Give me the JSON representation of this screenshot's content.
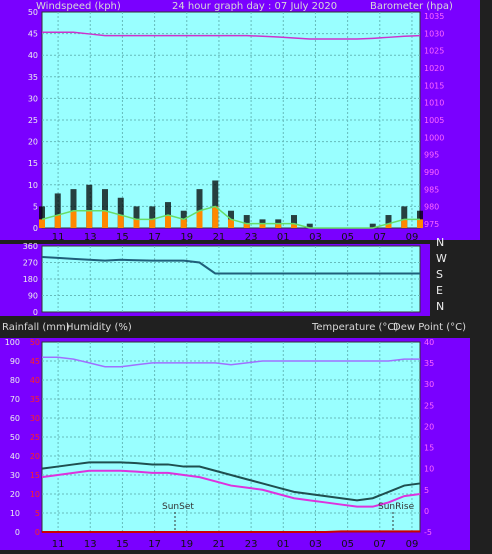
{
  "top_panel": {
    "left_title": "Windspeed (kph)",
    "center_title": "24 hour graph day : 07 July 2020",
    "right_title": "Barometer (hpa)",
    "left_ticks": [
      "50",
      "45",
      "40",
      "35",
      "30",
      "25",
      "20",
      "15",
      "10",
      "5",
      "0"
    ],
    "right_ticks": [
      "1035",
      "1030",
      "1025",
      "1020",
      "1015",
      "1010",
      "1005",
      "1000",
      "995",
      "990",
      "985",
      "980",
      "975"
    ],
    "x_ticks": [
      "11",
      "13",
      "15",
      "17",
      "19",
      "21",
      "23",
      "01",
      "03",
      "05",
      "07",
      "09"
    ]
  },
  "mid_panel": {
    "left_ticks": [
      "360",
      "270",
      "180",
      "90",
      "0"
    ],
    "compass": [
      "N",
      "W",
      "S",
      "E",
      "N"
    ]
  },
  "bottom_header": {
    "left_title": "Rainfall (mm)",
    "left_title2": "Humidity (%)",
    "right_title": "Temperature (°C)",
    "right_title2": "Dew Point (°C)"
  },
  "bottom_panel": {
    "humidity_ticks": [
      "100",
      "90",
      "80",
      "70",
      "60",
      "50",
      "40",
      "30",
      "20",
      "10",
      "0"
    ],
    "rain_ticks": [
      "50",
      "45",
      "40",
      "35",
      "30",
      "25",
      "20",
      "15",
      "10",
      "5",
      "0"
    ],
    "temp_ticks": [
      "40",
      "35",
      "30",
      "25",
      "20",
      "15",
      "10",
      "5",
      "0",
      "-5"
    ],
    "sunset_label": "SunSet",
    "sunrise_label": "SunRise",
    "x_ticks": [
      "11",
      "13",
      "15",
      "17",
      "19",
      "21",
      "23",
      "01",
      "03",
      "05",
      "07",
      "09"
    ]
  },
  "colors": {
    "frame": "#7a00ff",
    "plot_bg": "#99ffff",
    "grid": "#66bbbb",
    "barometer": "#cc33cc",
    "gust": "#000000",
    "wind_avg": "#66dd66",
    "wind_fill": "#ff8800",
    "wind_dir": "#1f5f7a",
    "humidity": "#a070ff",
    "temperature": "#1f4f4f",
    "dewpoint": "#dd33dd",
    "rain": "#cc0000",
    "rain_ticks": "#ff2222"
  },
  "chart_data": [
    {
      "type": "line",
      "title": "24 hour graph day : 07 July 2020",
      "x": [
        "10:00",
        "11:00",
        "12:00",
        "13:00",
        "14:00",
        "15:00",
        "16:00",
        "17:00",
        "18:00",
        "19:00",
        "20:00",
        "21:00",
        "22:00",
        "23:00",
        "00:00",
        "01:00",
        "02:00",
        "03:00",
        "04:00",
        "05:00",
        "06:00",
        "07:00",
        "08:00",
        "09:00",
        "09:20"
      ],
      "y_left_lim": [
        0,
        50
      ],
      "y_right_lim": [
        973,
        1037
      ],
      "series": [
        {
          "name": "Windspeed (kph)",
          "axis": "left",
          "gust": [
            5,
            8,
            9,
            10,
            9,
            7,
            5,
            5,
            6,
            4,
            9,
            11,
            4,
            3,
            2,
            2,
            3,
            1,
            0,
            0,
            0,
            1,
            3,
            5,
            4
          ],
          "average": [
            2,
            3,
            4,
            4,
            4,
            3,
            2,
            2,
            3,
            2,
            4,
            5,
            2,
            1,
            1,
            1,
            1,
            0,
            0,
            0,
            0,
            0,
            1,
            2,
            2
          ]
        },
        {
          "name": "Barometer (hpa)",
          "axis": "right",
          "values": [
            1031,
            1031,
            1031,
            1030.5,
            1030,
            1030,
            1030,
            1030,
            1030,
            1030,
            1030,
            1030,
            1030,
            1030,
            1029.8,
            1029.6,
            1029.3,
            1029,
            1029,
            1029,
            1029,
            1029.2,
            1029.5,
            1029.8,
            1030
          ]
        }
      ]
    },
    {
      "type": "line",
      "x": [
        "10:00",
        "11:00",
        "12:00",
        "13:00",
        "14:00",
        "15:00",
        "16:00",
        "17:00",
        "18:00",
        "19:00",
        "20:00",
        "21:00",
        "22:00",
        "23:00",
        "00:00",
        "01:00",
        "02:00",
        "03:00",
        "04:00",
        "05:00",
        "06:00",
        "07:00",
        "08:00",
        "09:00",
        "09:20"
      ],
      "y_lim": [
        0,
        360
      ],
      "series": [
        {
          "name": "Wind direction",
          "values": [
            300,
            295,
            290,
            285,
            280,
            285,
            282,
            280,
            280,
            280,
            270,
            210,
            210,
            210,
            210,
            210,
            210,
            210,
            210,
            210,
            210,
            210,
            210,
            210,
            210
          ]
        }
      ]
    },
    {
      "type": "line",
      "x": [
        "10:00",
        "11:00",
        "12:00",
        "13:00",
        "14:00",
        "15:00",
        "16:00",
        "17:00",
        "18:00",
        "19:00",
        "20:00",
        "21:00",
        "22:00",
        "23:00",
        "00:00",
        "01:00",
        "02:00",
        "03:00",
        "04:00",
        "05:00",
        "06:00",
        "07:00",
        "08:00",
        "09:00",
        "09:20"
      ],
      "y_left_lim": [
        0,
        100
      ],
      "y_right_lim": [
        -5,
        40
      ],
      "series": [
        {
          "name": "Humidity (%)",
          "axis": "left",
          "values": [
            92,
            92,
            91,
            89,
            87,
            87,
            88,
            89,
            89,
            89,
            89,
            89,
            88,
            89,
            90,
            90,
            90,
            90,
            90,
            90,
            90,
            90,
            90,
            91,
            91
          ]
        },
        {
          "name": "Temperature (°C)",
          "axis": "right",
          "values": [
            10,
            10.5,
            11,
            11.5,
            11.5,
            11.5,
            11.3,
            11,
            11,
            10.5,
            10.5,
            9.5,
            8.5,
            7.5,
            6.5,
            5.5,
            4.5,
            4,
            3.5,
            3,
            2.5,
            3,
            4.5,
            6,
            6.5
          ]
        },
        {
          "name": "Dew Point (°C)",
          "axis": "right",
          "values": [
            8,
            8.5,
            9,
            9.5,
            9.5,
            9.5,
            9.3,
            9,
            9,
            8.5,
            8,
            7,
            6,
            5.5,
            5,
            4,
            3,
            2.5,
            2,
            1.5,
            1,
            1,
            2,
            3.5,
            4
          ]
        },
        {
          "name": "Rainfall (mm)",
          "axis": "left",
          "values": [
            0,
            0,
            0,
            0,
            0,
            0,
            0,
            0,
            0,
            0,
            0,
            0,
            0,
            0,
            0,
            0,
            0,
            0,
            0,
            0.3,
            0.3,
            0.3,
            0.3,
            0.3,
            0.3
          ]
        }
      ]
    }
  ]
}
